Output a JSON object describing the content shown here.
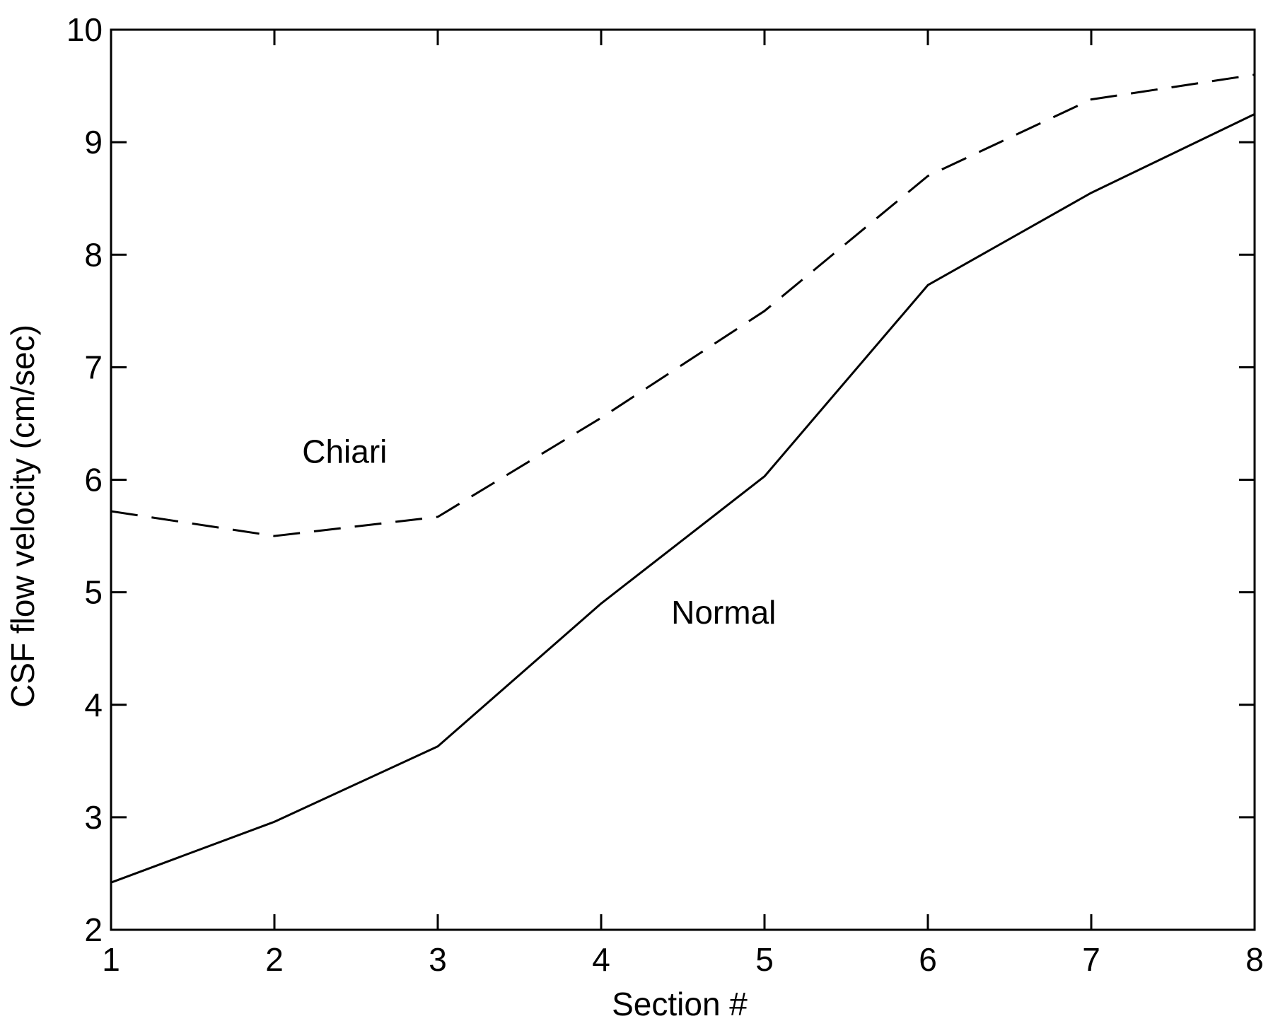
{
  "chart_data": {
    "type": "line",
    "title": "",
    "xlabel": "Section #",
    "ylabel": "CSF flow velocity (cm/sec)",
    "xlim": [
      1,
      8
    ],
    "ylim": [
      2,
      10
    ],
    "x": [
      1,
      2,
      3,
      4,
      5,
      6,
      7,
      8
    ],
    "x_ticks": [
      "1",
      "2",
      "3",
      "4",
      "5",
      "6",
      "7",
      "8"
    ],
    "y_ticks": [
      "2",
      "3",
      "4",
      "5",
      "6",
      "7",
      "8",
      "9",
      "10"
    ],
    "grid": false,
    "legend": "none",
    "series": [
      {
        "name": "Chiari",
        "style": "dashed",
        "color": "#000000",
        "values": [
          5.72,
          5.5,
          5.67,
          6.55,
          7.5,
          8.7,
          9.38,
          9.6
        ]
      },
      {
        "name": "Normal",
        "style": "solid",
        "color": "#000000",
        "values": [
          2.42,
          2.96,
          3.63,
          4.9,
          6.03,
          7.73,
          8.55,
          9.25
        ]
      }
    ],
    "annotations": [
      {
        "text": "Chiari",
        "x": 2.43,
        "y": 6.15
      },
      {
        "text": "Normal",
        "x": 4.75,
        "y": 4.72
      }
    ]
  }
}
